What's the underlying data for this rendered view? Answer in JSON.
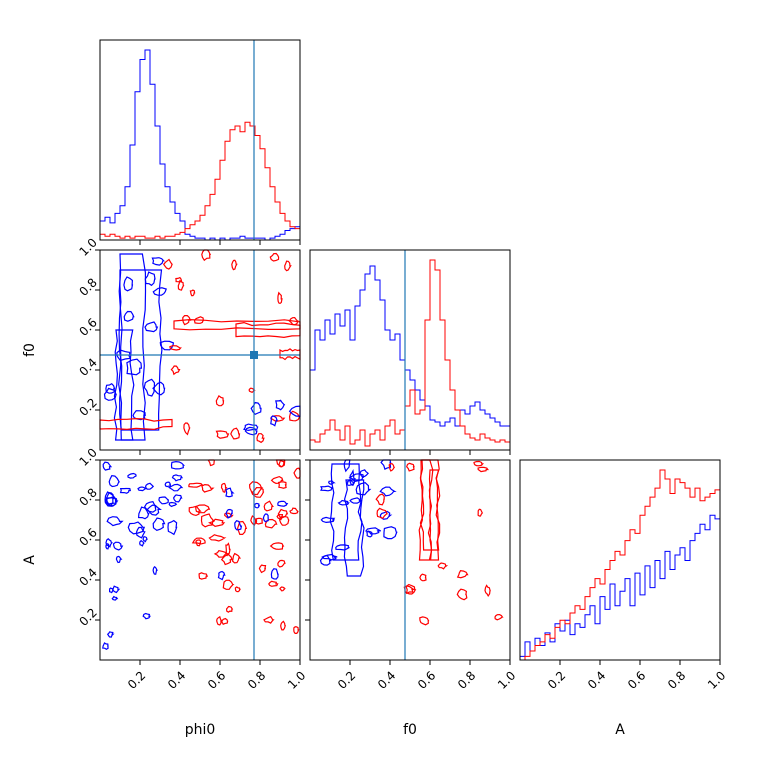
{
  "chart_data": {
    "type": "corner",
    "parameters": [
      "phi0",
      "f0",
      "A"
    ],
    "axis_labels": {
      "phi0": "phi0",
      "f0": "f0",
      "A": "A"
    },
    "ranges": {
      "phi0": [
        0,
        1
      ],
      "f0": [
        0,
        1
      ],
      "A": [
        0,
        1
      ]
    },
    "ticks": [
      0.2,
      0.4,
      0.6,
      0.8,
      1.0
    ],
    "tick_labels": [
      "0.2",
      "0.4",
      "0.6",
      "0.8",
      "1.0"
    ],
    "truth": {
      "phi0": 0.77,
      "f0": 0.475
    },
    "colors": {
      "series_blue": "#0000ff",
      "series_red": "#ff0000",
      "truth_line": "#1f77b4",
      "axes": "#000000"
    },
    "series": [
      {
        "color": "#0000ff",
        "hist_phi0": [
          0.1,
          0.12,
          0.09,
          0.14,
          0.18,
          0.28,
          0.5,
          0.78,
          0.95,
          1.0,
          0.82,
          0.6,
          0.4,
          0.28,
          0.2,
          0.14,
          0.1,
          0.03,
          0.02,
          0.01,
          0.01,
          0.0,
          0.01,
          0.0,
          0.01,
          0.0,
          0.01,
          0.01,
          0.02,
          0.01,
          0.01,
          0.01,
          0.01,
          0.0,
          0.01,
          0.02,
          0.03,
          0.05,
          0.06,
          0.07
        ],
        "hist_f0": [
          0.4,
          0.6,
          0.55,
          0.65,
          0.58,
          0.68,
          0.62,
          0.7,
          0.55,
          0.72,
          0.8,
          0.88,
          0.92,
          0.85,
          0.75,
          0.6,
          0.55,
          0.58,
          0.45,
          0.4,
          0.35,
          0.3,
          0.25,
          0.22,
          0.15,
          0.14,
          0.12,
          0.14,
          0.16,
          0.12,
          0.2,
          0.18,
          0.22,
          0.24,
          0.2,
          0.18,
          0.16,
          0.14,
          0.12,
          0.12
        ],
        "hist_A": [
          0.02,
          0.1,
          0.05,
          0.12,
          0.08,
          0.15,
          0.1,
          0.2,
          0.16,
          0.22,
          0.14,
          0.2,
          0.18,
          0.25,
          0.3,
          0.2,
          0.35,
          0.28,
          0.42,
          0.3,
          0.38,
          0.45,
          0.3,
          0.48,
          0.36,
          0.52,
          0.4,
          0.55,
          0.45,
          0.6,
          0.5,
          0.58,
          0.62,
          0.55,
          0.66,
          0.7,
          0.75,
          0.72,
          0.8,
          0.78
        ]
      },
      {
        "color": "#ff0000",
        "hist_phi0": [
          0.03,
          0.02,
          0.03,
          0.02,
          0.01,
          0.02,
          0.01,
          0.02,
          0.02,
          0.01,
          0.01,
          0.02,
          0.01,
          0.02,
          0.02,
          0.03,
          0.04,
          0.06,
          0.08,
          0.1,
          0.13,
          0.18,
          0.24,
          0.32,
          0.42,
          0.52,
          0.58,
          0.6,
          0.57,
          0.62,
          0.6,
          0.55,
          0.48,
          0.38,
          0.28,
          0.2,
          0.14,
          0.1,
          0.07,
          0.06
        ],
        "hist_f0": [
          0.05,
          0.04,
          0.08,
          0.1,
          0.15,
          0.1,
          0.05,
          0.12,
          0.03,
          0.05,
          0.1,
          0.02,
          0.08,
          0.1,
          0.05,
          0.12,
          0.15,
          0.08,
          0.1,
          0.22,
          0.3,
          0.18,
          0.2,
          0.65,
          1.2,
          0.9,
          0.65,
          0.45,
          0.3,
          0.2,
          0.12,
          0.08,
          0.06,
          0.05,
          0.08,
          0.06,
          0.05,
          0.04,
          0.05,
          0.04
        ],
        "hist_A": [
          0.0,
          0.02,
          0.05,
          0.08,
          0.1,
          0.14,
          0.12,
          0.18,
          0.22,
          0.2,
          0.26,
          0.3,
          0.28,
          0.35,
          0.4,
          0.45,
          0.42,
          0.5,
          0.55,
          0.6,
          0.58,
          0.66,
          0.72,
          0.7,
          0.8,
          0.85,
          0.9,
          0.95,
          1.05,
          1.0,
          0.92,
          1.0,
          0.98,
          0.95,
          0.9,
          0.95,
          0.88,
          0.9,
          0.92,
          0.94
        ]
      }
    ]
  }
}
